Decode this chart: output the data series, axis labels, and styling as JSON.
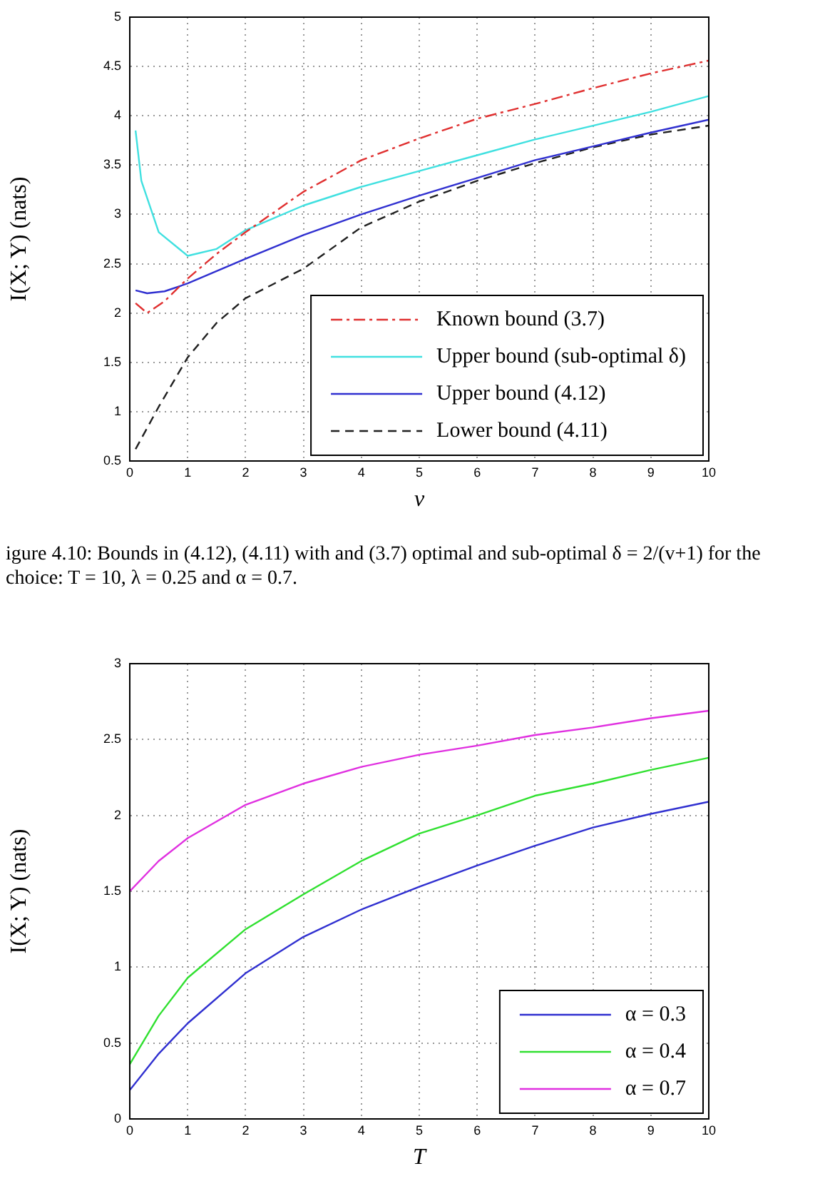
{
  "chart_data": [
    {
      "type": "line",
      "xlabel": "v",
      "ylabel": "I(X; Y) (nats)",
      "xlim": [
        0,
        10
      ],
      "xticks": [
        0,
        1,
        2,
        3,
        4,
        5,
        6,
        7,
        8,
        9,
        10
      ],
      "ylim": [
        0.5,
        5
      ],
      "yticks": [
        0.5,
        1,
        1.5,
        2,
        2.5,
        3,
        3.5,
        4,
        4.5,
        5
      ],
      "grid": true,
      "legend": "bottom right",
      "marker": "none",
      "series": [
        {
          "name": "Known bound (3.7)",
          "color": "#e03030",
          "line_style": "dashdot",
          "x": [
            0.1,
            0.3,
            0.6,
            1,
            1.5,
            2,
            3,
            4,
            5,
            6,
            7,
            8,
            9,
            10
          ],
          "values": [
            2.1,
            2.0,
            2.12,
            2.35,
            2.6,
            2.82,
            3.23,
            3.55,
            3.77,
            3.97,
            4.12,
            4.28,
            4.43,
            4.56
          ]
        },
        {
          "name": "Upper bound (sub-optimal δ)",
          "color": "#40e0e0",
          "line_style": "solid",
          "x": [
            0.1,
            0.2,
            0.5,
            1,
            1.5,
            2,
            3,
            4,
            5,
            6,
            7,
            8,
            9,
            10
          ],
          "values": [
            3.85,
            3.34,
            2.82,
            2.58,
            2.65,
            2.84,
            3.09,
            3.28,
            3.44,
            3.6,
            3.76,
            3.9,
            4.04,
            4.2
          ]
        },
        {
          "name": "Upper bound (4.12)",
          "color": "#3030d0",
          "line_style": "solid",
          "x": [
            0.1,
            0.3,
            0.6,
            1,
            2,
            3,
            4,
            5,
            6,
            7,
            8,
            9,
            10
          ],
          "values": [
            2.23,
            2.2,
            2.22,
            2.3,
            2.55,
            2.79,
            3.0,
            3.19,
            3.37,
            3.55,
            3.69,
            3.83,
            3.96
          ]
        },
        {
          "name": "Lower bound (4.11)",
          "color": "#202020",
          "line_style": "dashed",
          "x": [
            0.1,
            0.5,
            1,
            1.5,
            2,
            2.5,
            3,
            4,
            5,
            6,
            7,
            8,
            9,
            10
          ],
          "values": [
            0.62,
            1.05,
            1.55,
            1.9,
            2.15,
            2.3,
            2.45,
            2.87,
            3.13,
            3.34,
            3.52,
            3.68,
            3.81,
            3.9
          ]
        }
      ],
      "annotations": [
        "igure 4.10: Bounds in (4.12), (4.11) with and (3.7) optimal and sub-optimal δ = 2/(v+1) for the choice: T = 10, λ = 0.25 and α = 0.7."
      ]
    },
    {
      "type": "line",
      "xlabel": "T",
      "ylabel": "I(X; Y) (nats)",
      "xlim": [
        0,
        10
      ],
      "xticks": [
        0,
        1,
        2,
        3,
        4,
        5,
        6,
        7,
        8,
        9,
        10
      ],
      "ylim": [
        0,
        3
      ],
      "yticks": [
        0,
        0.5,
        1,
        1.5,
        2,
        2.5,
        3
      ],
      "grid": true,
      "legend": "bottom right",
      "marker": "none",
      "series": [
        {
          "name": "α = 0.3",
          "color": "#3030d0",
          "line_style": "solid",
          "x": [
            0,
            0.5,
            1,
            2,
            3,
            4,
            5,
            6,
            7,
            8,
            9,
            10
          ],
          "values": [
            0.19,
            0.43,
            0.63,
            0.96,
            1.2,
            1.38,
            1.53,
            1.67,
            1.8,
            1.92,
            2.01,
            2.09
          ]
        },
        {
          "name": "α = 0.4",
          "color": "#30e030",
          "line_style": "solid",
          "x": [
            0,
            0.5,
            1,
            2,
            3,
            4,
            5,
            6,
            7,
            8,
            9,
            10
          ],
          "values": [
            0.36,
            0.68,
            0.93,
            1.25,
            1.48,
            1.7,
            1.88,
            2.0,
            2.13,
            2.21,
            2.3,
            2.38
          ]
        },
        {
          "name": "α = 0.7",
          "color": "#e030e0",
          "line_style": "solid",
          "x": [
            0,
            0.5,
            1,
            2,
            3,
            4,
            5,
            6,
            7,
            8,
            9,
            10
          ],
          "values": [
            1.5,
            1.7,
            1.85,
            2.07,
            2.21,
            2.32,
            2.4,
            2.46,
            2.53,
            2.58,
            2.64,
            2.69
          ]
        }
      ]
    }
  ]
}
